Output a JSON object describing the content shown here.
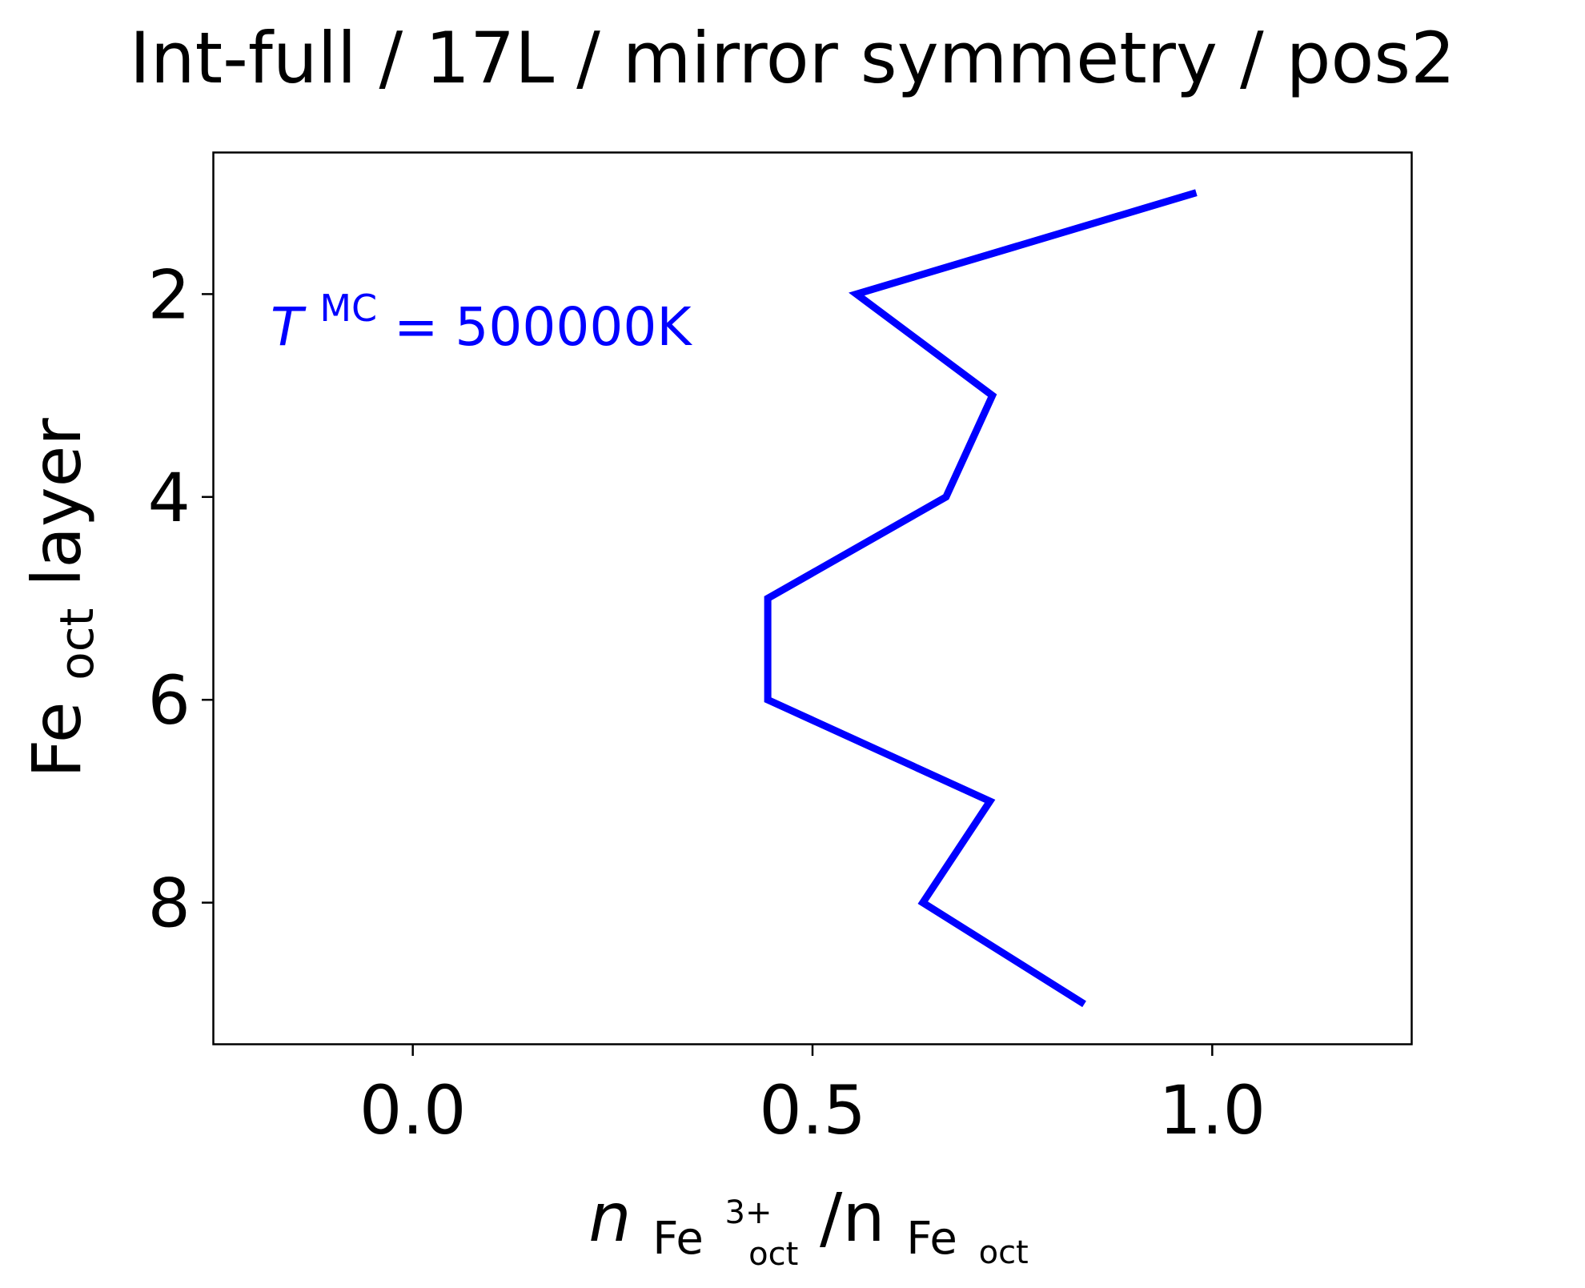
{
  "chart_data": {
    "type": "line",
    "title": "Int-full / 17L / mirror symmetry / pos2",
    "xlabel": {
      "main": "n",
      "sub1": "Fe",
      "sub1_sub": "oct",
      "sub1_sup": "3+",
      "sep": "/n",
      "sub2": "Fe",
      "sub2_sub": "oct"
    },
    "ylabel": {
      "main": "Fe",
      "sub": "oct",
      "rest": " layer"
    },
    "annotation": {
      "symbol": "T",
      "superscript": "MC",
      "rest": " = 500000K",
      "color": "#0000ff"
    },
    "xlim": [
      -0.25,
      1.25
    ],
    "ylim": [
      9.4,
      0.6
    ],
    "y_inverted": true,
    "xticks": [
      0.0,
      0.5,
      1.0
    ],
    "xtick_labels": [
      "0.0",
      "0.5",
      "1.0"
    ],
    "yticks": [
      2,
      4,
      6,
      8
    ],
    "ytick_labels": [
      "2",
      "4",
      "6",
      "8"
    ],
    "grid": false,
    "legend": "none",
    "series": [
      {
        "color": "#0000ff",
        "points": [
          {
            "x": 0.98,
            "y": 1
          },
          {
            "x": 0.555,
            "y": 2
          },
          {
            "x": 0.725,
            "y": 3
          },
          {
            "x": 0.667,
            "y": 4
          },
          {
            "x": 0.444,
            "y": 5
          },
          {
            "x": 0.444,
            "y": 6
          },
          {
            "x": 0.722,
            "y": 7
          },
          {
            "x": 0.638,
            "y": 8
          },
          {
            "x": 0.84,
            "y": 9
          }
        ]
      }
    ]
  }
}
